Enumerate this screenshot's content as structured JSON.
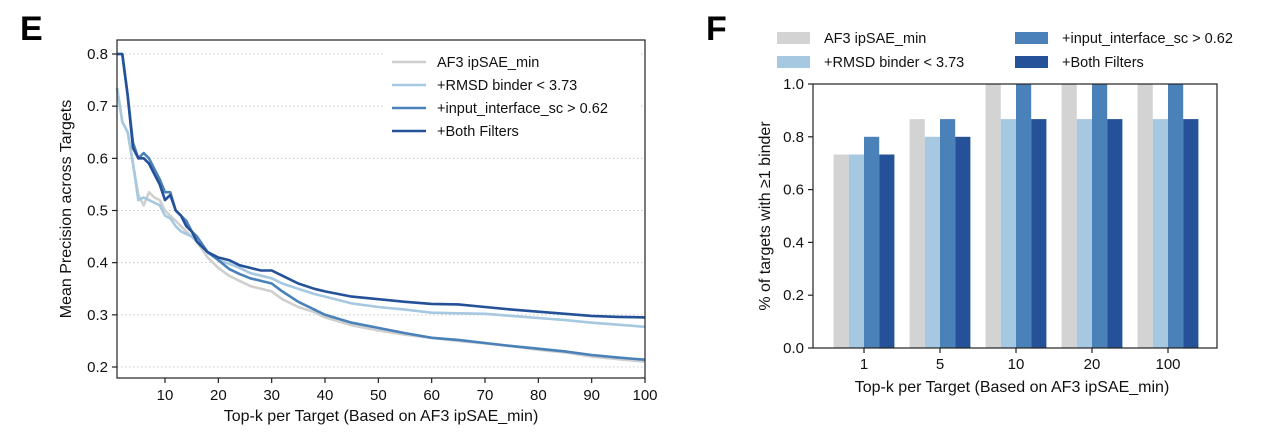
{
  "chart_data": [
    {
      "panel": "E",
      "type": "line",
      "title": "",
      "xlabel": "Top-k per Target (Based on AF3 ipSAE_min)",
      "ylabel": "Mean Precision across Targets",
      "xlim": [
        1,
        100
      ],
      "ylim": [
        0.19,
        0.82
      ],
      "xticks": [
        10,
        20,
        30,
        40,
        50,
        60,
        70,
        80,
        90,
        100
      ],
      "yticks": [
        0.2,
        0.3,
        0.4,
        0.5,
        0.6,
        0.7,
        0.8
      ],
      "grid": "horizontal dotted",
      "legend_position": "top-right",
      "series": [
        {
          "name": "AF3 ipSAE_min",
          "color": "#cfcfcf",
          "x": [
            1,
            2,
            3,
            4,
            5,
            6,
            7,
            8,
            9,
            10,
            11,
            12,
            13,
            14,
            15,
            16,
            18,
            20,
            22,
            24,
            26,
            28,
            30,
            32,
            35,
            38,
            40,
            45,
            50,
            55,
            60,
            65,
            70,
            75,
            80,
            85,
            90,
            95,
            100
          ],
          "y": [
            0.735,
            0.67,
            0.65,
            0.59,
            0.53,
            0.51,
            0.535,
            0.525,
            0.52,
            0.5,
            0.49,
            0.48,
            0.47,
            0.46,
            0.45,
            0.44,
            0.41,
            0.39,
            0.375,
            0.365,
            0.355,
            0.35,
            0.345,
            0.33,
            0.315,
            0.305,
            0.295,
            0.28,
            0.27,
            0.262,
            0.256,
            0.25,
            0.245,
            0.24,
            0.233,
            0.228,
            0.22,
            0.215,
            0.21
          ]
        },
        {
          "name": "+RMSD binder < 3.73",
          "color": "#a6c8e0",
          "x": [
            1,
            2,
            3,
            4,
            5,
            6,
            7,
            8,
            9,
            10,
            11,
            12,
            13,
            14,
            15,
            16,
            18,
            20,
            22,
            24,
            26,
            28,
            30,
            32,
            35,
            38,
            40,
            45,
            50,
            55,
            60,
            65,
            70,
            75,
            80,
            85,
            90,
            95,
            100
          ],
          "y": [
            0.735,
            0.67,
            0.65,
            0.59,
            0.52,
            0.525,
            0.52,
            0.515,
            0.51,
            0.49,
            0.485,
            0.47,
            0.46,
            0.455,
            0.45,
            0.44,
            0.42,
            0.405,
            0.398,
            0.39,
            0.38,
            0.375,
            0.37,
            0.36,
            0.35,
            0.34,
            0.335,
            0.322,
            0.315,
            0.31,
            0.304,
            0.303,
            0.302,
            0.298,
            0.294,
            0.29,
            0.285,
            0.281,
            0.277
          ]
        },
        {
          "name": "+input_interface_sc > 0.62",
          "color": "#4a81b9",
          "x": [
            1,
            2,
            3,
            4,
            5,
            6,
            7,
            8,
            9,
            10,
            11,
            12,
            13,
            14,
            15,
            16,
            18,
            20,
            22,
            24,
            26,
            28,
            30,
            32,
            35,
            38,
            40,
            45,
            50,
            55,
            60,
            65,
            70,
            75,
            80,
            85,
            90,
            95,
            100
          ],
          "y": [
            0.8,
            0.8,
            0.72,
            0.63,
            0.6,
            0.61,
            0.6,
            0.58,
            0.56,
            0.535,
            0.535,
            0.5,
            0.49,
            0.48,
            0.46,
            0.45,
            0.42,
            0.405,
            0.388,
            0.378,
            0.37,
            0.365,
            0.36,
            0.345,
            0.325,
            0.31,
            0.3,
            0.285,
            0.275,
            0.265,
            0.256,
            0.252,
            0.246,
            0.24,
            0.235,
            0.23,
            0.223,
            0.218,
            0.214
          ]
        },
        {
          "name": "+Both Filters",
          "color": "#245197",
          "x": [
            1,
            2,
            3,
            4,
            5,
            6,
            7,
            8,
            9,
            10,
            11,
            12,
            13,
            14,
            15,
            16,
            18,
            20,
            22,
            24,
            26,
            28,
            30,
            32,
            35,
            38,
            40,
            45,
            50,
            55,
            60,
            65,
            70,
            75,
            80,
            85,
            90,
            95,
            100
          ],
          "y": [
            0.8,
            0.8,
            0.72,
            0.62,
            0.6,
            0.6,
            0.59,
            0.57,
            0.55,
            0.52,
            0.53,
            0.5,
            0.49,
            0.47,
            0.46,
            0.44,
            0.42,
            0.41,
            0.405,
            0.395,
            0.39,
            0.385,
            0.385,
            0.375,
            0.36,
            0.35,
            0.345,
            0.335,
            0.33,
            0.325,
            0.321,
            0.32,
            0.315,
            0.31,
            0.306,
            0.302,
            0.298,
            0.296,
            0.295
          ]
        }
      ]
    },
    {
      "panel": "F",
      "type": "bar",
      "title": "",
      "xlabel": "Top-k per Target (Based on AF3 ipSAE_min)",
      "ylabel": "% of targets with ≥1 binder",
      "ylim": [
        0.0,
        1.0
      ],
      "yticks": [
        0.0,
        0.2,
        0.4,
        0.6,
        0.8,
        1.0
      ],
      "yticklabels": [
        "0.0",
        "0.2",
        "0.4",
        "0.6",
        "0.8",
        "1.0"
      ],
      "grid": "none",
      "legend_position": "top (above plot, 2 columns)",
      "categories": [
        "1",
        "5",
        "10",
        "20",
        "100"
      ],
      "series": [
        {
          "name": "AF3 ipSAE_min",
          "color": "#d3d3d3",
          "values": [
            0.733,
            0.867,
            1.0,
            1.0,
            1.0
          ]
        },
        {
          "name": "+RMSD binder < 3.73",
          "color": "#a6c8e0",
          "values": [
            0.733,
            0.8,
            0.867,
            0.867,
            0.867
          ]
        },
        {
          "name": "+input_interface_sc > 0.62",
          "color": "#4a81b9",
          "values": [
            0.8,
            0.867,
            1.0,
            1.0,
            1.0
          ]
        },
        {
          "name": "+Both Filters",
          "color": "#245197",
          "values": [
            0.733,
            0.8,
            0.867,
            0.867,
            0.867
          ]
        }
      ]
    }
  ],
  "panels": {
    "e_letter": "E",
    "f_letter": "F"
  }
}
